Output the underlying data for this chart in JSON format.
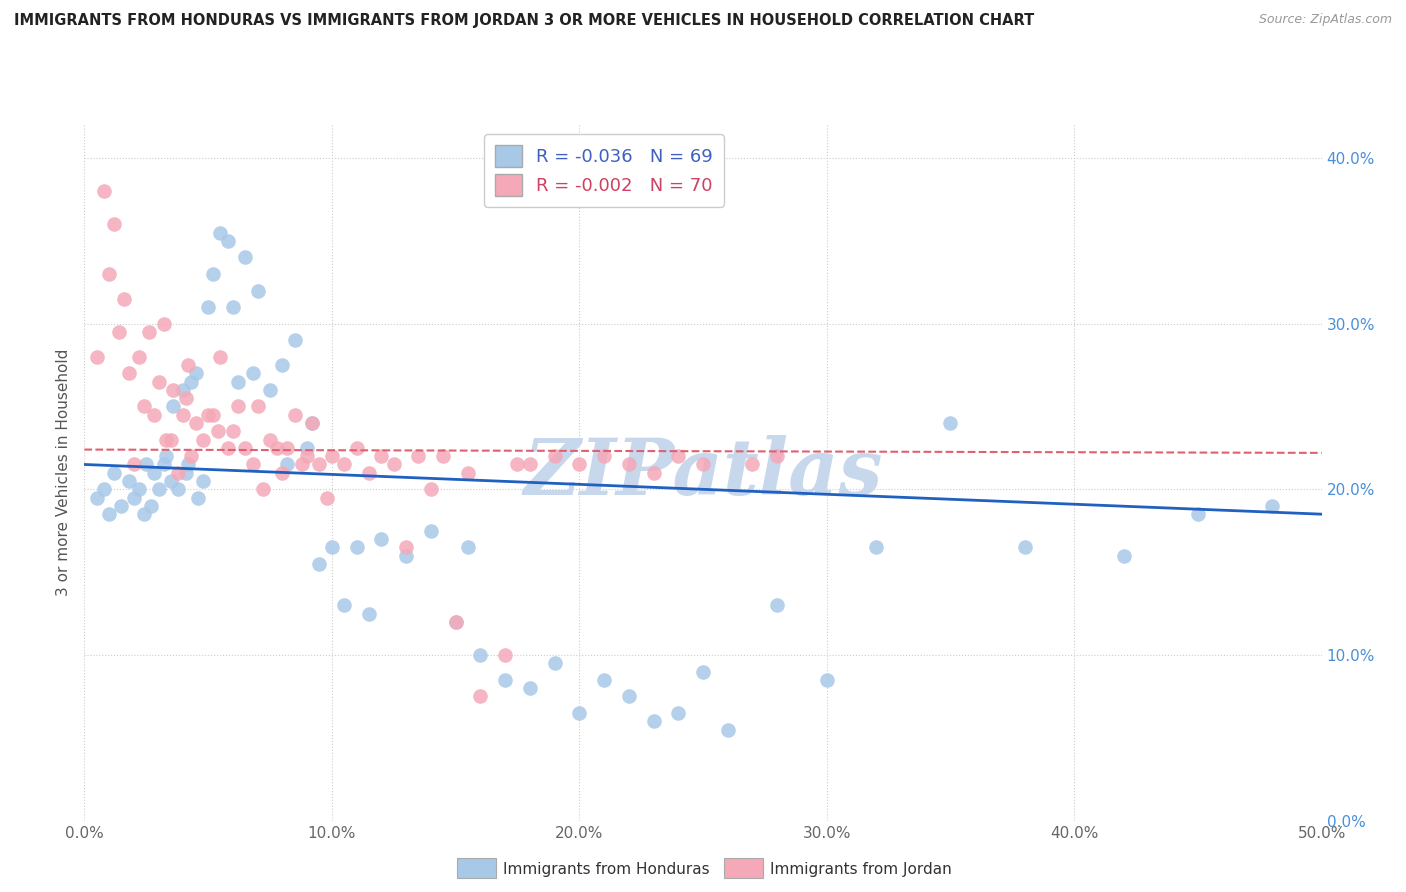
{
  "title": "IMMIGRANTS FROM HONDURAS VS IMMIGRANTS FROM JORDAN 3 OR MORE VEHICLES IN HOUSEHOLD CORRELATION CHART",
  "source": "Source: ZipAtlas.com",
  "xlim": [
    0.0,
    0.5
  ],
  "ylim": [
    0.0,
    0.42
  ],
  "legend_labels": [
    "Immigrants from Honduras",
    "Immigrants from Jordan"
  ],
  "R_honduras": -0.036,
  "N_honduras": 69,
  "R_jordan": -0.002,
  "N_jordan": 70,
  "color_honduras": "#a8c8e8",
  "color_jordan": "#f4a8b8",
  "trendline_honduras_color": "#2060c0",
  "trendline_jordan_color": "#e06070",
  "watermark_color": "#c8d8ec",
  "honduras_x": [
    0.005,
    0.008,
    0.01,
    0.012,
    0.015,
    0.018,
    0.02,
    0.022,
    0.024,
    0.025,
    0.027,
    0.028,
    0.03,
    0.032,
    0.033,
    0.035,
    0.036,
    0.038,
    0.04,
    0.041,
    0.042,
    0.043,
    0.045,
    0.046,
    0.048,
    0.05,
    0.052,
    0.055,
    0.058,
    0.06,
    0.062,
    0.065,
    0.068,
    0.07,
    0.075,
    0.08,
    0.082,
    0.085,
    0.09,
    0.092,
    0.095,
    0.1,
    0.105,
    0.11,
    0.115,
    0.12,
    0.13,
    0.14,
    0.15,
    0.155,
    0.16,
    0.17,
    0.18,
    0.19,
    0.2,
    0.21,
    0.22,
    0.23,
    0.24,
    0.25,
    0.26,
    0.28,
    0.3,
    0.32,
    0.35,
    0.38,
    0.42,
    0.45,
    0.48
  ],
  "honduras_y": [
    0.195,
    0.2,
    0.185,
    0.21,
    0.19,
    0.205,
    0.195,
    0.2,
    0.185,
    0.215,
    0.19,
    0.21,
    0.2,
    0.215,
    0.22,
    0.205,
    0.25,
    0.2,
    0.26,
    0.21,
    0.215,
    0.265,
    0.27,
    0.195,
    0.205,
    0.31,
    0.33,
    0.355,
    0.35,
    0.31,
    0.265,
    0.34,
    0.27,
    0.32,
    0.26,
    0.275,
    0.215,
    0.29,
    0.225,
    0.24,
    0.155,
    0.165,
    0.13,
    0.165,
    0.125,
    0.17,
    0.16,
    0.175,
    0.12,
    0.165,
    0.1,
    0.085,
    0.08,
    0.095,
    0.065,
    0.085,
    0.075,
    0.06,
    0.065,
    0.09,
    0.055,
    0.13,
    0.085,
    0.165,
    0.24,
    0.165,
    0.16,
    0.185,
    0.19
  ],
  "jordan_x": [
    0.005,
    0.008,
    0.01,
    0.012,
    0.014,
    0.016,
    0.018,
    0.02,
    0.022,
    0.024,
    0.026,
    0.028,
    0.03,
    0.032,
    0.033,
    0.035,
    0.036,
    0.038,
    0.04,
    0.041,
    0.042,
    0.043,
    0.045,
    0.048,
    0.05,
    0.052,
    0.054,
    0.055,
    0.058,
    0.06,
    0.062,
    0.065,
    0.068,
    0.07,
    0.072,
    0.075,
    0.078,
    0.08,
    0.082,
    0.085,
    0.088,
    0.09,
    0.092,
    0.095,
    0.098,
    0.1,
    0.105,
    0.11,
    0.115,
    0.12,
    0.125,
    0.13,
    0.135,
    0.14,
    0.145,
    0.15,
    0.155,
    0.16,
    0.17,
    0.175,
    0.18,
    0.19,
    0.2,
    0.21,
    0.22,
    0.23,
    0.24,
    0.25,
    0.27,
    0.28
  ],
  "jordan_y": [
    0.28,
    0.38,
    0.33,
    0.36,
    0.295,
    0.315,
    0.27,
    0.215,
    0.28,
    0.25,
    0.295,
    0.245,
    0.265,
    0.3,
    0.23,
    0.23,
    0.26,
    0.21,
    0.245,
    0.255,
    0.275,
    0.22,
    0.24,
    0.23,
    0.245,
    0.245,
    0.235,
    0.28,
    0.225,
    0.235,
    0.25,
    0.225,
    0.215,
    0.25,
    0.2,
    0.23,
    0.225,
    0.21,
    0.225,
    0.245,
    0.215,
    0.22,
    0.24,
    0.215,
    0.195,
    0.22,
    0.215,
    0.225,
    0.21,
    0.22,
    0.215,
    0.165,
    0.22,
    0.2,
    0.22,
    0.12,
    0.21,
    0.075,
    0.1,
    0.215,
    0.215,
    0.22,
    0.215,
    0.22,
    0.215,
    0.21,
    0.22,
    0.215,
    0.215,
    0.22
  ],
  "trendline_h_y0": 0.215,
  "trendline_h_y1": 0.185,
  "trendline_j_y0": 0.224,
  "trendline_j_y1": 0.222
}
